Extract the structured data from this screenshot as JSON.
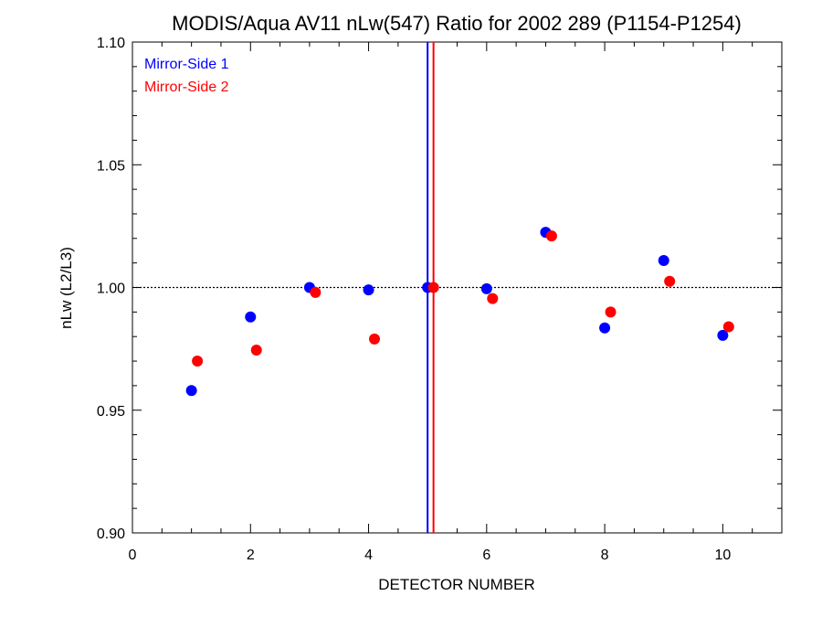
{
  "chart_data": {
    "type": "scatter",
    "title": "MODIS/Aqua AV11 nLw(547) Ratio for 2002 289 (P1154-P1254)",
    "xlabel": "DETECTOR NUMBER",
    "ylabel": "nLw (L2/L3)",
    "xlim": [
      0,
      11
    ],
    "ylim": [
      0.9,
      1.1
    ],
    "x_ticks": [
      0,
      2,
      4,
      6,
      8,
      10
    ],
    "x_tick_labels": [
      "0",
      "2",
      "4",
      "6",
      "8",
      "10"
    ],
    "y_ticks": [
      0.9,
      0.95,
      1.0,
      1.05,
      1.1
    ],
    "y_tick_labels": [
      "0.90",
      "0.95",
      "1.00",
      "1.05",
      "1.10"
    ],
    "reference_line_y": 1.0,
    "legend_position": "top-left",
    "series": [
      {
        "name": "Mirror-Side 1",
        "color": "#0000ff",
        "x": [
          1,
          2,
          3,
          4,
          5,
          6,
          7,
          8,
          9,
          10
        ],
        "y": [
          0.958,
          0.988,
          1.0,
          0.999,
          1.0,
          0.9995,
          1.0225,
          0.9835,
          1.011,
          0.9805
        ],
        "vline_x": 5.0
      },
      {
        "name": "Mirror-Side 2",
        "color": "#ff0000",
        "x": [
          1.1,
          2.1,
          3.1,
          4.1,
          5.1,
          6.1,
          7.1,
          8.1,
          9.1,
          10.1
        ],
        "y": [
          0.97,
          0.9745,
          0.998,
          0.979,
          1.0,
          0.9955,
          1.021,
          0.99,
          1.0025,
          0.984
        ],
        "vline_x": 5.1
      }
    ]
  }
}
